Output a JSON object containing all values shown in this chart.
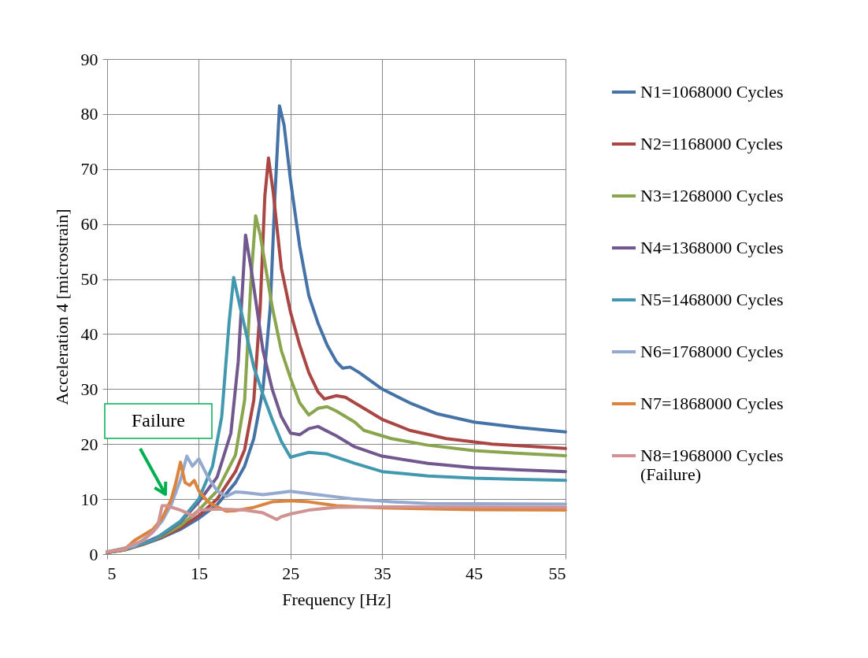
{
  "chart_data": {
    "type": "line",
    "xlabel": "Frequency [Hz]",
    "ylabel": "Acceleration 4 [microstrain]",
    "xlim": [
      5,
      55
    ],
    "xticks": [
      5,
      15,
      25,
      35,
      45,
      55
    ],
    "ylim": [
      0,
      90
    ],
    "yticks": [
      0,
      10,
      20,
      30,
      40,
      50,
      60,
      70,
      80,
      90
    ],
    "grid": true,
    "legend": "right",
    "marker": "none",
    "line_style": "solid",
    "annotations": [
      "Failure"
    ],
    "series": [
      {
        "name": "N1=1068000 Cycles",
        "color": "#4572a7",
        "x": [
          5,
          7,
          9,
          11,
          13,
          15,
          17,
          19,
          20,
          21,
          22,
          22.8,
          23.3,
          23.8,
          24.3,
          25,
          26,
          27,
          28,
          29,
          30,
          30.7,
          31.5,
          32.5,
          35,
          38,
          41,
          45,
          50,
          55
        ],
        "values": [
          0.3,
          0.8,
          1.8,
          3.0,
          4.5,
          6.5,
          9,
          13,
          16,
          21,
          30,
          45,
          65,
          81.5,
          78,
          68,
          56,
          47,
          42,
          38,
          35,
          33.8,
          34,
          33,
          30,
          27.5,
          25.5,
          24,
          23,
          22.2
        ]
      },
      {
        "name": "N2=1168000 Cycles",
        "color": "#aa4643",
        "x": [
          5,
          7,
          9,
          11,
          13,
          15,
          17,
          19,
          20,
          21,
          21.7,
          22.2,
          22.6,
          23.1,
          24,
          25,
          26,
          27,
          28,
          28.7,
          30,
          31,
          33,
          35,
          38,
          42,
          47,
          55
        ],
        "values": [
          0.3,
          0.8,
          1.8,
          3.1,
          4.8,
          7,
          10,
          15,
          19,
          28,
          45,
          65,
          72,
          66,
          52,
          44,
          38,
          33,
          29.5,
          28.2,
          28.8,
          28.5,
          26.5,
          24.5,
          22.5,
          21,
          20,
          19.2
        ]
      },
      {
        "name": "N3=1268000 Cycles",
        "color": "#89a54e",
        "x": [
          5,
          7,
          9,
          11,
          13,
          15,
          17,
          19,
          20,
          20.7,
          21.2,
          21.7,
          23,
          24,
          25,
          26,
          27,
          28,
          29,
          30,
          32,
          33,
          36,
          40,
          45,
          50,
          55
        ],
        "values": [
          0.3,
          0.8,
          1.9,
          3.3,
          5.2,
          8,
          11.5,
          18,
          28,
          50,
          61.5,
          58,
          45,
          37,
          32,
          27.5,
          25.3,
          26.5,
          26.8,
          26,
          24,
          22.5,
          21,
          19.8,
          18.8,
          18.3,
          17.9
        ]
      },
      {
        "name": "N4=1368000 Cycles",
        "color": "#71588f",
        "x": [
          5,
          7,
          9,
          11,
          13,
          15,
          17,
          18.5,
          19.3,
          20.1,
          20.7,
          22,
          23,
          24,
          25,
          26,
          27,
          28,
          30,
          32,
          35,
          40,
          45,
          50,
          55
        ],
        "values": [
          0.3,
          0.9,
          2.0,
          3.5,
          5.8,
          9.5,
          14,
          22,
          35,
          58,
          52,
          37,
          30,
          25,
          22,
          21.7,
          22.8,
          23.2,
          21.5,
          19.5,
          17.8,
          16.5,
          15.7,
          15.3,
          15.0
        ]
      },
      {
        "name": "N5=1468000 Cycles",
        "color": "#4198af",
        "x": [
          5,
          7,
          10,
          13,
          15,
          16.5,
          17.5,
          18.3,
          18.8,
          19.5,
          21,
          22,
          23,
          24,
          25,
          25.6,
          27,
          29,
          32,
          35,
          40,
          45,
          50,
          55
        ],
        "values": [
          0.4,
          1.0,
          2.5,
          6,
          10,
          16,
          25,
          42,
          50.3,
          45,
          34,
          29,
          24.5,
          20.5,
          17.6,
          17.9,
          18.5,
          18.2,
          16.5,
          15,
          14.2,
          13.8,
          13.6,
          13.4
        ]
      },
      {
        "name": "N6=1768000 Cycles",
        "color": "#93a9cf",
        "x": [
          5,
          8,
          10,
          11,
          12,
          13,
          13.7,
          14.3,
          15,
          16,
          17,
          18,
          19,
          20,
          22,
          25,
          28,
          32,
          36,
          40,
          55
        ],
        "values": [
          0.4,
          1.5,
          4,
          6,
          9,
          13.5,
          17.8,
          16,
          17.3,
          14,
          11.5,
          10.5,
          11.3,
          11.2,
          10.8,
          11.4,
          10.8,
          10,
          9.5,
          9.2,
          9.1
        ]
      },
      {
        "name": "N7=1868000 Cycles",
        "color": "#db843d",
        "x": [
          5,
          7,
          8,
          10,
          11,
          12,
          12.5,
          13,
          13.5,
          14,
          14.5,
          15,
          16,
          17,
          18,
          19,
          21,
          23,
          25,
          27,
          30,
          35,
          45,
          55
        ],
        "values": [
          0.4,
          1,
          2.5,
          4.5,
          6.5,
          10,
          13,
          16.7,
          13,
          12.5,
          13.4,
          11.5,
          9.5,
          8.6,
          7.8,
          7.9,
          8.5,
          9.5,
          9.7,
          9.5,
          8.8,
          8.4,
          8.1,
          8.0
        ]
      },
      {
        "name": "N8=1968000 Cycles\n(Failure)",
        "color": "#d09292",
        "x": [
          5,
          7,
          7.5,
          9,
          10.5,
          11,
          11.5,
          13,
          14,
          14.3,
          15,
          17,
          20,
          22,
          23.5,
          24,
          25,
          27,
          30,
          35,
          55
        ],
        "values": [
          0.4,
          0.9,
          1.6,
          2.5,
          5,
          8.8,
          8.8,
          8,
          7.3,
          6.8,
          8,
          8.2,
          8,
          7.5,
          6.3,
          6.8,
          7.3,
          8,
          8.5,
          8.6,
          8.5
        ]
      }
    ]
  }
}
